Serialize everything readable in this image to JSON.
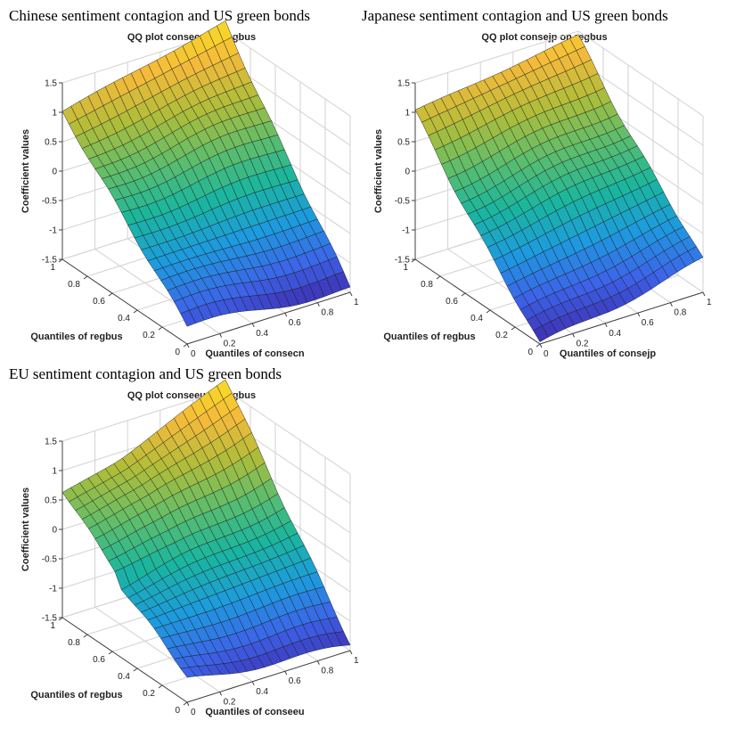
{
  "chart_data": [
    {
      "type": "surface3d",
      "panel_caption": "Chinese sentiment contagion and US green bonds",
      "title": "QQ plot consecn on regbus",
      "xlabel": "Quantiles of consecn",
      "ylabel": "Quantiles of regbus",
      "zlabel": "Coefficient values",
      "x_ticks": [
        "0",
        "0.2",
        "0.4",
        "0.6",
        "0.8",
        "1"
      ],
      "y_ticks": [
        "0",
        "0.2",
        "0.4",
        "0.6",
        "0.8",
        "1"
      ],
      "z_ticks": [
        "-1.5",
        "-1",
        "-0.5",
        "0",
        "0.5",
        "1",
        "1.5"
      ],
      "xlim": [
        0,
        1
      ],
      "ylim": [
        0,
        1
      ],
      "zlim": [
        -1.5,
        1.5
      ],
      "corner_values": {
        "x0_y0": -1.2,
        "x1_y0": -1.45,
        "x0_y1": 1.0,
        "x1_y1": 1.65
      },
      "colormap": [
        "#3e26a8",
        "#3d63e9",
        "#1d9bde",
        "#1ab69e",
        "#5dbd6c",
        "#aebd3a",
        "#f4ba3b",
        "#f9e022"
      ]
    },
    {
      "type": "surface3d",
      "panel_caption": "Japanese sentiment contagion and US green bonds",
      "title": "QQ plot consejp on regbus",
      "xlabel": "Quantiles of consejp",
      "ylabel": "Quantiles of regbus",
      "zlabel": "Coefficient values",
      "x_ticks": [
        "0",
        "0.2",
        "0.4",
        "0.6",
        "0.8",
        "1"
      ],
      "y_ticks": [
        "0",
        "0.2",
        "0.4",
        "0.6",
        "0.8",
        "1"
      ],
      "z_ticks": [
        "-1.5",
        "-1",
        "-0.5",
        "0",
        "0.5",
        "1",
        "1.5"
      ],
      "xlim": [
        0,
        1
      ],
      "ylim": [
        0,
        1
      ],
      "zlim": [
        -1.5,
        1.5
      ],
      "corner_values": {
        "x0_y0": -1.55,
        "x1_y0": -1.0,
        "x0_y1": 1.0,
        "x1_y1": 1.4
      },
      "colormap": [
        "#3e26a8",
        "#3d63e9",
        "#1d9bde",
        "#1ab69e",
        "#5dbd6c",
        "#aebd3a",
        "#f4ba3b",
        "#f9e022"
      ]
    },
    {
      "type": "surface3d",
      "panel_caption": "EU sentiment contagion and US green bonds",
      "title": "QQ plot conseeu on regbus",
      "xlabel": "Quantiles of conseeu",
      "ylabel": "Quantiles of regbus",
      "zlabel": "Coefficient values",
      "x_ticks": [
        "0",
        "0.2",
        "0.4",
        "0.6",
        "0.8",
        "1"
      ],
      "y_ticks": [
        "0",
        "0.2",
        "0.4",
        "0.6",
        "0.8",
        "1"
      ],
      "z_ticks": [
        "-1.5",
        "-1",
        "-0.5",
        "0",
        "0.5",
        "1",
        "1.5"
      ],
      "xlim": [
        0,
        1
      ],
      "ylim": [
        0,
        1
      ],
      "zlim": [
        -1.5,
        1.5
      ],
      "corner_values": {
        "x0_y0": -1.1,
        "x1_y0": -1.4,
        "x0_y1": 0.5,
        "x1_y1": 1.7
      },
      "colormap": [
        "#3e26a8",
        "#3d63e9",
        "#1d9bde",
        "#1ab69e",
        "#5dbd6c",
        "#aebd3a",
        "#f4ba3b",
        "#f9e022"
      ]
    }
  ]
}
